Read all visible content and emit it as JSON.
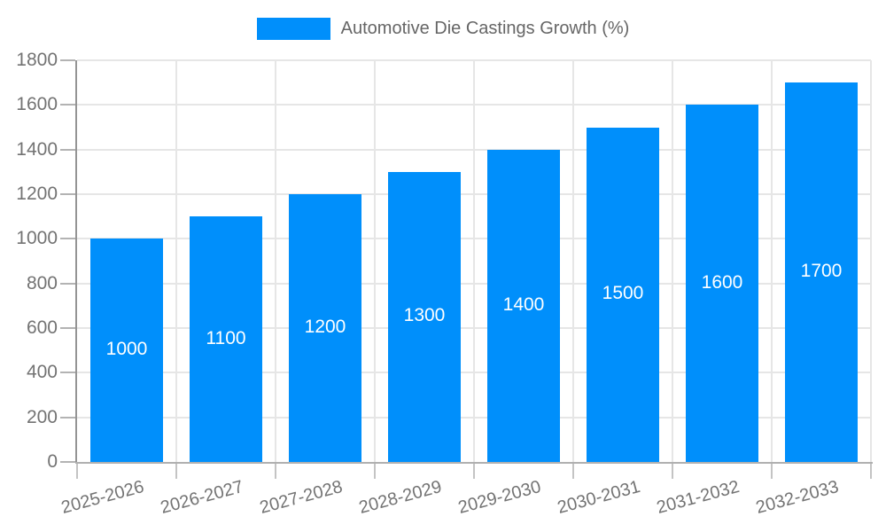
{
  "legend": {
    "label": "Automotive Die Castings Growth (%)",
    "swatch_color": "#008FFB"
  },
  "chart_data": {
    "type": "bar",
    "title": "",
    "xlabel": "",
    "ylabel": "",
    "categories": [
      "2025-2026",
      "2026-2027",
      "2027-2028",
      "2028-2029",
      "2029-2030",
      "2030-2031",
      "2031-2032",
      "2032-2033"
    ],
    "series": [
      {
        "name": "Automotive Die Castings Growth (%)",
        "values": [
          1000,
          1100,
          1200,
          1300,
          1400,
          1500,
          1600,
          1700
        ]
      }
    ],
    "bar_labels": [
      "1000",
      "1100",
      "1200",
      "1300",
      "1400",
      "1500",
      "1600",
      "1700"
    ],
    "ylim": [
      0,
      1800
    ],
    "ytick_step": 200,
    "yticks": [
      0,
      200,
      400,
      600,
      800,
      1000,
      1200,
      1400,
      1600,
      1800
    ],
    "grid": true,
    "legend_position": "top",
    "colors": {
      "bar": "#008FFB",
      "bar_label": "#ffffff",
      "axis_text": "#737373",
      "legend_text": "#666666",
      "gridline": "#e6e6e6",
      "y_axis_line": "#949494",
      "x_axis_line": "#b0b0b0"
    }
  }
}
